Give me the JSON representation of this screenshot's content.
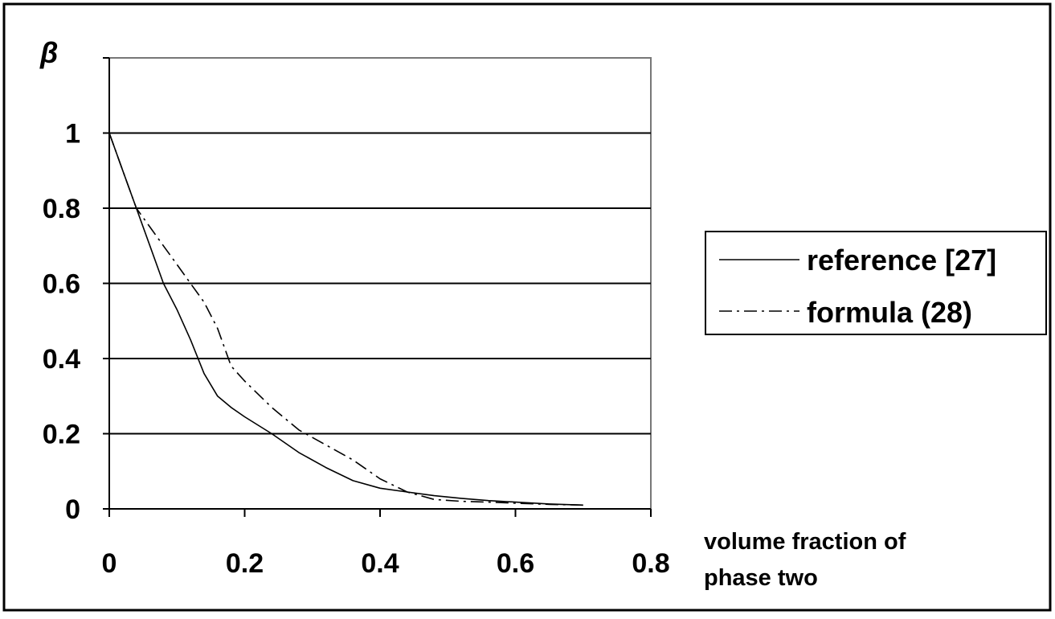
{
  "chart_data": {
    "type": "line",
    "ylabel": "β",
    "xlabel_line1": "volume fraction of",
    "xlabel_line2": "phase two",
    "xlim": [
      0,
      0.8
    ],
    "ylim": [
      0,
      1.2
    ],
    "x_ticks": [
      "0",
      "0.2",
      "0.4",
      "0.6",
      "0.8"
    ],
    "y_ticks": [
      "0",
      "0.2",
      "0.4",
      "0.6",
      "0.8",
      "1"
    ],
    "grid": "horizontal",
    "legend_position": "right",
    "series": [
      {
        "name": "reference [27]",
        "style": "solid",
        "points": [
          [
            0,
            1.0
          ],
          [
            0.02,
            0.9
          ],
          [
            0.04,
            0.8
          ],
          [
            0.06,
            0.7
          ],
          [
            0.08,
            0.6
          ],
          [
            0.1,
            0.53
          ],
          [
            0.12,
            0.45
          ],
          [
            0.14,
            0.36
          ],
          [
            0.16,
            0.3
          ],
          [
            0.18,
            0.27
          ],
          [
            0.2,
            0.245
          ],
          [
            0.24,
            0.2
          ],
          [
            0.28,
            0.15
          ],
          [
            0.32,
            0.11
          ],
          [
            0.36,
            0.075
          ],
          [
            0.4,
            0.055
          ],
          [
            0.44,
            0.045
          ],
          [
            0.48,
            0.035
          ],
          [
            0.52,
            0.028
          ],
          [
            0.56,
            0.022
          ],
          [
            0.6,
            0.018
          ],
          [
            0.65,
            0.013
          ],
          [
            0.7,
            0.01
          ]
        ]
      },
      {
        "name": "formula (28)",
        "style": "dash-dot",
        "points": [
          [
            0,
            1.0
          ],
          [
            0.02,
            0.9
          ],
          [
            0.04,
            0.8
          ],
          [
            0.06,
            0.75
          ],
          [
            0.08,
            0.7
          ],
          [
            0.1,
            0.65
          ],
          [
            0.12,
            0.6
          ],
          [
            0.14,
            0.55
          ],
          [
            0.16,
            0.48
          ],
          [
            0.18,
            0.38
          ],
          [
            0.2,
            0.34
          ],
          [
            0.24,
            0.27
          ],
          [
            0.28,
            0.21
          ],
          [
            0.32,
            0.17
          ],
          [
            0.36,
            0.13
          ],
          [
            0.4,
            0.08
          ],
          [
            0.44,
            0.045
          ],
          [
            0.48,
            0.025
          ],
          [
            0.52,
            0.02
          ],
          [
            0.56,
            0.018
          ],
          [
            0.6,
            0.015
          ],
          [
            0.65,
            0.012
          ],
          [
            0.7,
            0.01
          ]
        ]
      }
    ]
  }
}
